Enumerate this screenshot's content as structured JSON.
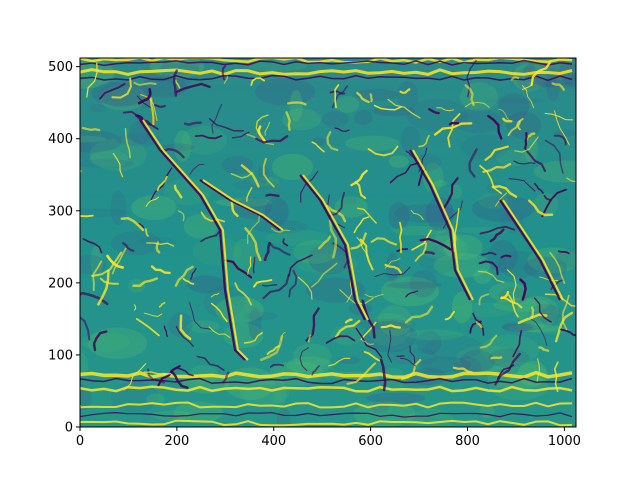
{
  "chart_data": {
    "type": "heatmap",
    "title": "",
    "xlabel": "",
    "ylabel": "",
    "xlim": [
      0,
      1024
    ],
    "ylim": [
      0,
      512
    ],
    "x_ticks": [
      0,
      200,
      400,
      600,
      800,
      1000
    ],
    "y_ticks": [
      0,
      100,
      200,
      300,
      400,
      500
    ],
    "colormap": [
      "#440154",
      "#3b528b",
      "#21918c",
      "#5ec962",
      "#fde725"
    ],
    "grid": false,
    "legend": "none"
  }
}
